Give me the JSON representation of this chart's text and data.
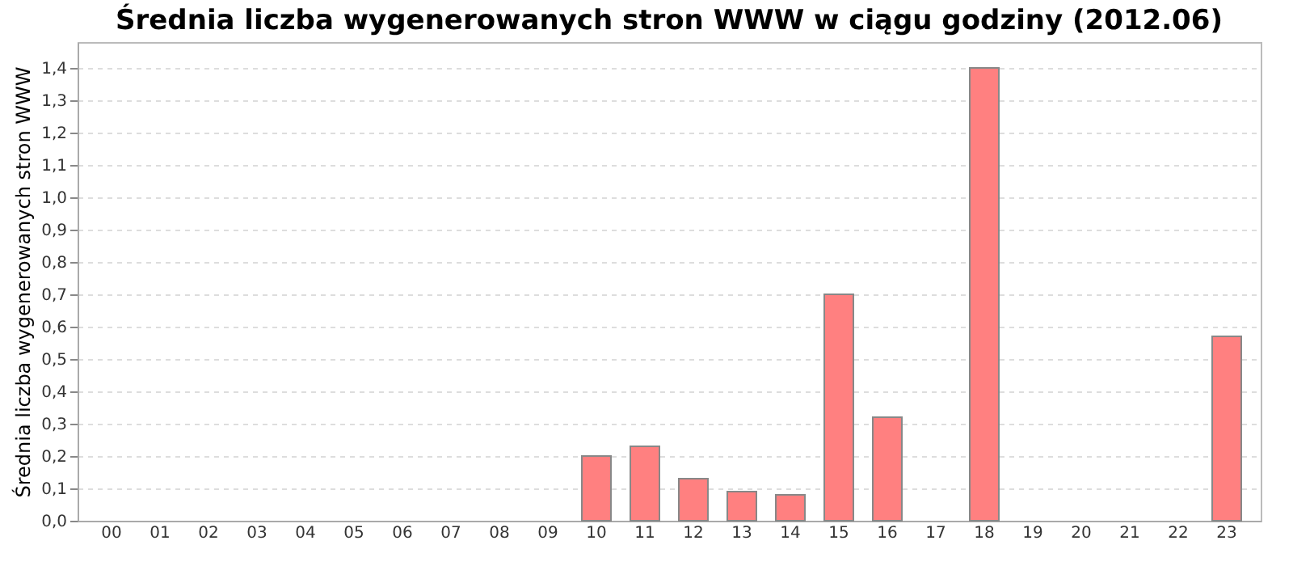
{
  "chart_data": {
    "type": "bar",
    "title": "Średnia liczba wygenerowanych stron WWW w ciągu godziny (2012.06)",
    "ylabel": "Średnia liczba wygenerowanych stron WWW",
    "categories": [
      "00",
      "01",
      "02",
      "03",
      "04",
      "05",
      "06",
      "07",
      "08",
      "09",
      "10",
      "11",
      "12",
      "13",
      "14",
      "15",
      "16",
      "17",
      "18",
      "19",
      "20",
      "21",
      "22",
      "23"
    ],
    "values": [
      0,
      0,
      0,
      0,
      0,
      0,
      0,
      0,
      0,
      0,
      0.2,
      0.23,
      0.13,
      0.09,
      0.08,
      0.7,
      0.32,
      0,
      1.4,
      0,
      0,
      0,
      0,
      0.57
    ],
    "color": "#ff8080",
    "ylim": [
      0,
      1.48
    ],
    "yticks": [
      {
        "value": 0,
        "label": "0,0"
      },
      {
        "value": 0.1,
        "label": "0,1"
      },
      {
        "value": 0.2,
        "label": "0,2"
      },
      {
        "value": 0.3,
        "label": "0,3"
      },
      {
        "value": 0.4,
        "label": "0,4"
      },
      {
        "value": 0.5,
        "label": "0,5"
      },
      {
        "value": 0.6,
        "label": "0,6"
      },
      {
        "value": 0.7,
        "label": "0,7"
      },
      {
        "value": 0.8,
        "label": "0,8"
      },
      {
        "value": 0.9,
        "label": "0,9"
      },
      {
        "value": 1,
        "label": "1,0"
      },
      {
        "value": 1.1,
        "label": "1,1"
      },
      {
        "value": 1.2,
        "label": "1,2"
      },
      {
        "value": 1.3,
        "label": "1,3"
      },
      {
        "value": 1.4,
        "label": "1,4"
      }
    ],
    "grid": "y"
  }
}
